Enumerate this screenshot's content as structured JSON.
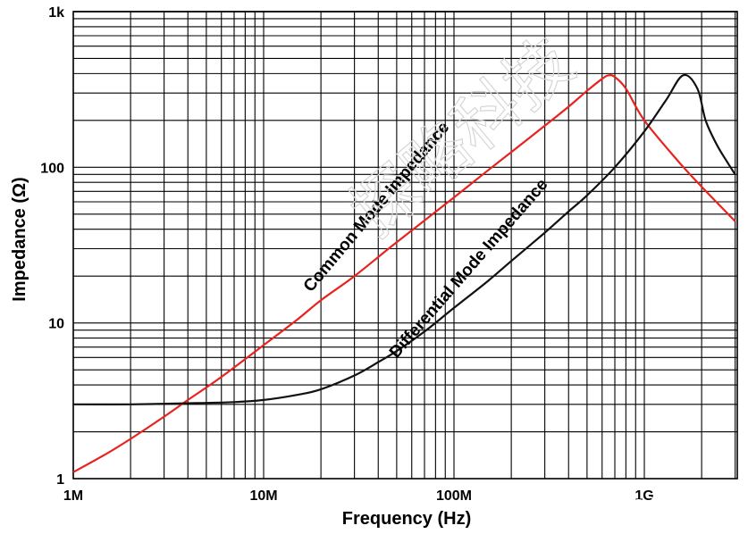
{
  "chart_data": {
    "type": "line",
    "title": "",
    "xlabel": "Frequency (Hz)",
    "ylabel": "Impedance (Ω)",
    "xscale": "log",
    "yscale": "log",
    "xlim": [
      1000000,
      3500000000
    ],
    "ylim": [
      1,
      1000
    ],
    "grid": true,
    "x_ticks": [
      {
        "value": 1000000,
        "label": "1M"
      },
      {
        "value": 10000000,
        "label": "10M"
      },
      {
        "value": 100000000,
        "label": "100M"
      },
      {
        "value": 1000000000,
        "label": "1G"
      }
    ],
    "y_ticks": [
      {
        "value": 1,
        "label": "1"
      },
      {
        "value": 10,
        "label": "10"
      },
      {
        "value": 100,
        "label": "100"
      },
      {
        "value": 1000,
        "label": "1k"
      }
    ],
    "series": [
      {
        "name": "Common Mode Impedance",
        "color": "#e8231f",
        "x": [
          1000000,
          1500000,
          2000000,
          3000000,
          4000000,
          6000000,
          10000000,
          15000000,
          20000000,
          30000000,
          50000000,
          100000000,
          150000000,
          200000000,
          300000000,
          400000000,
          500000000,
          600000000,
          650000000,
          700000000,
          800000000,
          1000000000,
          1500000000,
          2000000000,
          3000000000
        ],
        "values": [
          1.1,
          1.45,
          1.8,
          2.5,
          3.2,
          4.5,
          7.2,
          10.5,
          14,
          20,
          33,
          64,
          95,
          125,
          185,
          245,
          310,
          370,
          390,
          380,
          320,
          200,
          110,
          75,
          45
        ]
      },
      {
        "name": "Differential Mode Impedance",
        "color": "#111111",
        "x": [
          1000000,
          2000000,
          4000000,
          7000000,
          10000000,
          15000000,
          20000000,
          30000000,
          40000000,
          50000000,
          70000000,
          100000000,
          150000000,
          200000000,
          300000000,
          400000000,
          500000000,
          700000000,
          1000000000,
          1300000000,
          1600000000,
          1900000000,
          2100000000,
          2400000000,
          2700000000,
          3000000000
        ],
        "values": [
          3.0,
          3.0,
          3.05,
          3.1,
          3.2,
          3.45,
          3.75,
          4.6,
          5.6,
          6.6,
          8.8,
          12.5,
          18.5,
          25,
          38,
          52,
          66,
          100,
          170,
          270,
          390,
          320,
          200,
          140,
          110,
          90
        ]
      }
    ]
  },
  "watermark": {
    "chinese_text": "探略科技",
    "credit_text": "知乎 @张小林"
  }
}
